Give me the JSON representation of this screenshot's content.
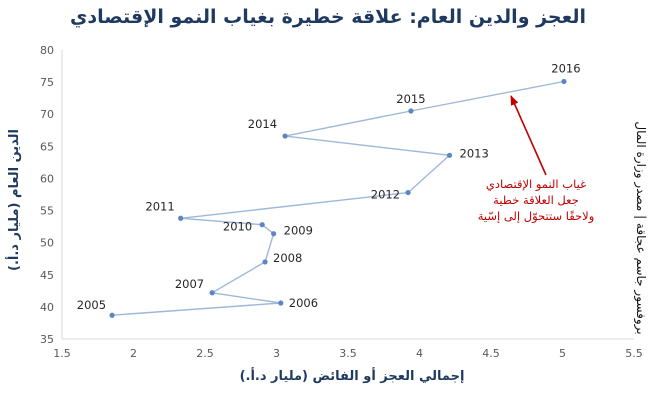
{
  "title": "العجز والدين العام: علاقة خطيرة بغياب النمو الإقتصادي",
  "source": "بروفسور جاسم عجاقة | مصدر وزارة المال",
  "chart_data": {
    "type": "line",
    "title": "العجز والدين العام: علاقة خطيرة بغياب النمو الإقتصادي",
    "xlabel": "إجمالي العجز أو الفائض (مليار د.أ.)",
    "ylabel": "الدين العام (مليار د.أ.)",
    "xlim": [
      1.5,
      5.5
    ],
    "ylim": [
      35,
      80
    ],
    "xticks": [
      "1.5",
      "2",
      "2.5",
      "3",
      "3.5",
      "4",
      "4.5",
      "5",
      "5.5"
    ],
    "yticks": [
      "35",
      "40",
      "45",
      "50",
      "55",
      "60",
      "65",
      "70",
      "75",
      "80"
    ],
    "grid": false,
    "line_color": "#9fb8d8",
    "marker_color": "#5b86bf",
    "points": [
      {
        "label": "2005",
        "x": 1.85,
        "y": 38.7
      },
      {
        "label": "2006",
        "x": 3.03,
        "y": 40.6
      },
      {
        "label": "2007",
        "x": 2.55,
        "y": 42.2
      },
      {
        "label": "2008",
        "x": 2.92,
        "y": 47.0
      },
      {
        "label": "2009",
        "x": 2.98,
        "y": 51.4
      },
      {
        "label": "2010",
        "x": 2.9,
        "y": 52.8
      },
      {
        "label": "2011",
        "x": 2.33,
        "y": 53.8
      },
      {
        "label": "2012",
        "x": 3.92,
        "y": 57.8
      },
      {
        "label": "2013",
        "x": 4.21,
        "y": 63.6
      },
      {
        "label": "2014",
        "x": 3.06,
        "y": 66.6
      },
      {
        "label": "2015",
        "x": 3.94,
        "y": 70.5
      },
      {
        "label": "2016",
        "x": 5.01,
        "y": 75.1
      }
    ],
    "annotation": {
      "lines": [
        "غياب النمو الإقتصادي",
        "جعل العلاقة خطية",
        "ولاحقًا ستتحوّل إلى إسّية"
      ],
      "color": "#c00000"
    }
  }
}
